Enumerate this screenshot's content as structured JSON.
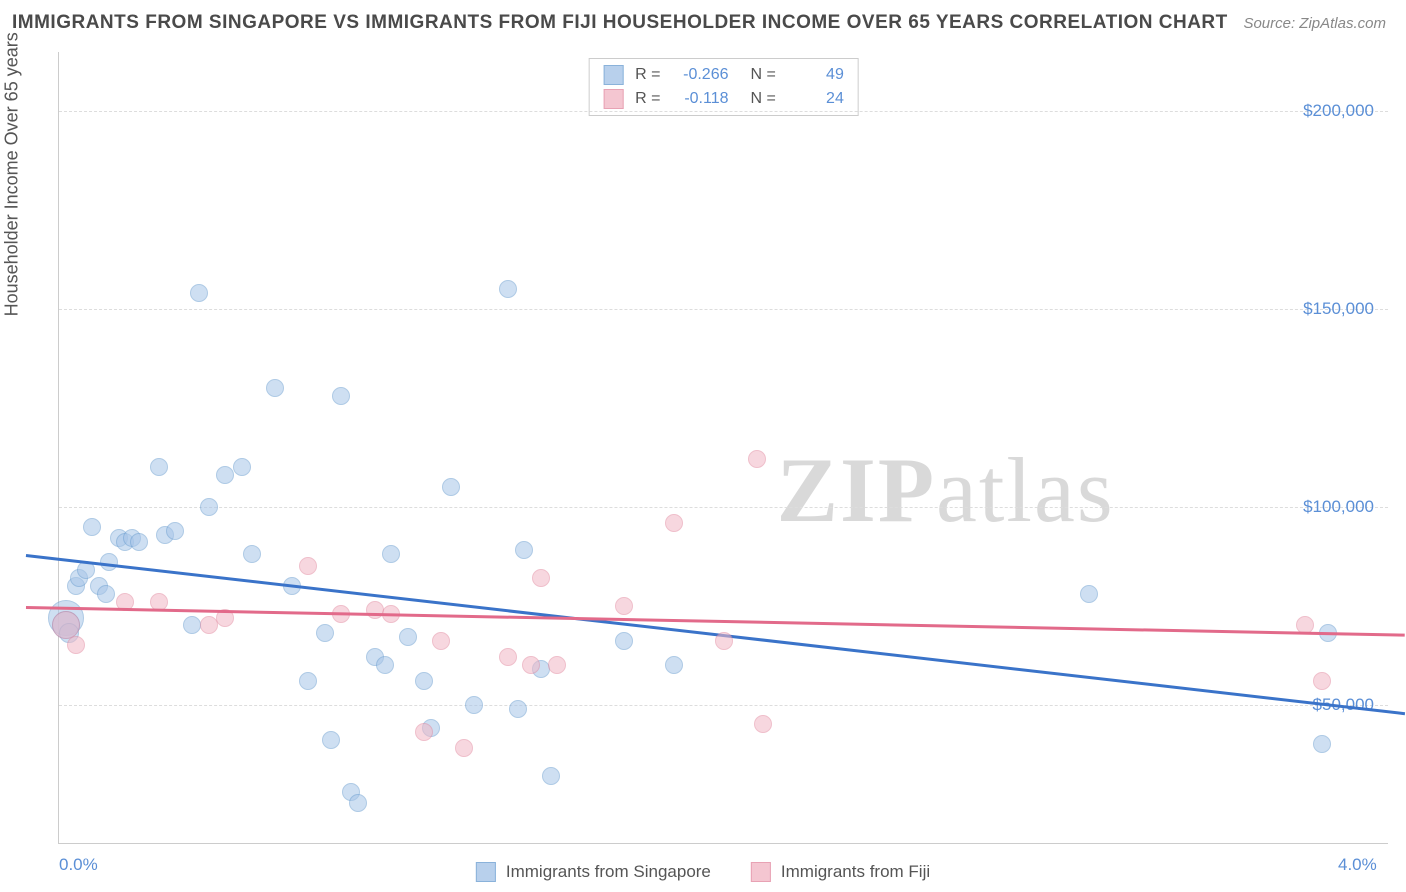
{
  "header": {
    "title": "IMMIGRANTS FROM SINGAPORE VS IMMIGRANTS FROM FIJI HOUSEHOLDER INCOME OVER 65 YEARS CORRELATION CHART",
    "source": "Source: ZipAtlas.com"
  },
  "chart": {
    "type": "scatter",
    "y_axis_label": "Householder Income Over 65 years",
    "xlim": [
      0.0,
      4.0
    ],
    "ylim": [
      15000,
      215000
    ],
    "x_ticks": [
      {
        "v": 0.0,
        "label": "0.0%"
      },
      {
        "v": 4.0,
        "label": "4.0%"
      }
    ],
    "y_gridlines": [
      50000,
      100000,
      150000,
      200000
    ],
    "y_tick_labels": [
      {
        "v": 50000,
        "label": "$50,000"
      },
      {
        "v": 100000,
        "label": "$100,000"
      },
      {
        "v": 150000,
        "label": "$150,000"
      },
      {
        "v": 200000,
        "label": "$200,000"
      }
    ],
    "background_color": "#ffffff",
    "grid_color": "#dddddd",
    "watermark": "ZIPatlas",
    "series": [
      {
        "key": "singapore",
        "label": "Immigrants from Singapore",
        "fill": "#a7c5e8",
        "stroke": "#6d9fd1",
        "fill_opacity": 0.55,
        "marker_r": 9,
        "R": "-0.266",
        "N": "49",
        "trend": {
          "x1": -0.1,
          "y1": 88000,
          "x2": 4.05,
          "y2": 48000,
          "color": "#3a73c9",
          "width": 2.5
        },
        "points": [
          {
            "x": 0.02,
            "y": 72000,
            "r": 18
          },
          {
            "x": 0.02,
            "y": 70000,
            "r": 14
          },
          {
            "x": 0.03,
            "y": 68000,
            "r": 10
          },
          {
            "x": 0.05,
            "y": 80000
          },
          {
            "x": 0.06,
            "y": 82000
          },
          {
            "x": 0.08,
            "y": 84000
          },
          {
            "x": 0.1,
            "y": 95000
          },
          {
            "x": 0.12,
            "y": 80000
          },
          {
            "x": 0.14,
            "y": 78000
          },
          {
            "x": 0.15,
            "y": 86000
          },
          {
            "x": 0.18,
            "y": 92000
          },
          {
            "x": 0.2,
            "y": 91000
          },
          {
            "x": 0.22,
            "y": 92000
          },
          {
            "x": 0.24,
            "y": 91000
          },
          {
            "x": 0.3,
            "y": 110000
          },
          {
            "x": 0.32,
            "y": 93000
          },
          {
            "x": 0.35,
            "y": 94000
          },
          {
            "x": 0.4,
            "y": 70000
          },
          {
            "x": 0.42,
            "y": 154000
          },
          {
            "x": 0.45,
            "y": 100000
          },
          {
            "x": 0.5,
            "y": 108000
          },
          {
            "x": 0.55,
            "y": 110000
          },
          {
            "x": 0.58,
            "y": 88000
          },
          {
            "x": 0.65,
            "y": 130000
          },
          {
            "x": 0.7,
            "y": 80000
          },
          {
            "x": 0.75,
            "y": 56000
          },
          {
            "x": 0.8,
            "y": 68000
          },
          {
            "x": 0.82,
            "y": 41000
          },
          {
            "x": 0.85,
            "y": 128000
          },
          {
            "x": 0.88,
            "y": 28000
          },
          {
            "x": 0.9,
            "y": 25000
          },
          {
            "x": 0.95,
            "y": 62000
          },
          {
            "x": 0.98,
            "y": 60000
          },
          {
            "x": 1.0,
            "y": 88000
          },
          {
            "x": 1.05,
            "y": 67000
          },
          {
            "x": 1.1,
            "y": 56000
          },
          {
            "x": 1.12,
            "y": 44000
          },
          {
            "x": 1.18,
            "y": 105000
          },
          {
            "x": 1.25,
            "y": 50000
          },
          {
            "x": 1.35,
            "y": 155000
          },
          {
            "x": 1.38,
            "y": 49000
          },
          {
            "x": 1.4,
            "y": 89000
          },
          {
            "x": 1.45,
            "y": 59000
          },
          {
            "x": 1.48,
            "y": 32000
          },
          {
            "x": 1.7,
            "y": 66000
          },
          {
            "x": 1.85,
            "y": 60000
          },
          {
            "x": 3.1,
            "y": 78000
          },
          {
            "x": 3.8,
            "y": 40000
          },
          {
            "x": 3.82,
            "y": 68000
          }
        ]
      },
      {
        "key": "fiji",
        "label": "Immigrants from Fiji",
        "fill": "#f2b8c6",
        "stroke": "#e38ca2",
        "fill_opacity": 0.55,
        "marker_r": 9,
        "R": "-0.118",
        "N": "24",
        "trend": {
          "x1": -0.1,
          "y1": 75000,
          "x2": 4.05,
          "y2": 68000,
          "color": "#e26a8a",
          "width": 2.5
        },
        "points": [
          {
            "x": 0.02,
            "y": 70000,
            "r": 14
          },
          {
            "x": 0.05,
            "y": 65000
          },
          {
            "x": 0.2,
            "y": 76000
          },
          {
            "x": 0.3,
            "y": 76000
          },
          {
            "x": 0.45,
            "y": 70000
          },
          {
            "x": 0.5,
            "y": 72000
          },
          {
            "x": 0.75,
            "y": 85000
          },
          {
            "x": 0.85,
            "y": 73000
          },
          {
            "x": 0.95,
            "y": 74000
          },
          {
            "x": 1.0,
            "y": 73000
          },
          {
            "x": 1.1,
            "y": 43000
          },
          {
            "x": 1.15,
            "y": 66000
          },
          {
            "x": 1.22,
            "y": 39000
          },
          {
            "x": 1.35,
            "y": 62000
          },
          {
            "x": 1.42,
            "y": 60000
          },
          {
            "x": 1.45,
            "y": 82000
          },
          {
            "x": 1.5,
            "y": 60000
          },
          {
            "x": 1.7,
            "y": 75000
          },
          {
            "x": 1.85,
            "y": 96000
          },
          {
            "x": 2.0,
            "y": 66000
          },
          {
            "x": 2.1,
            "y": 112000
          },
          {
            "x": 2.12,
            "y": 45000
          },
          {
            "x": 3.75,
            "y": 70000
          },
          {
            "x": 3.8,
            "y": 56000
          }
        ]
      }
    ]
  },
  "legend_top_labels": {
    "R": "R =",
    "N": "N ="
  }
}
